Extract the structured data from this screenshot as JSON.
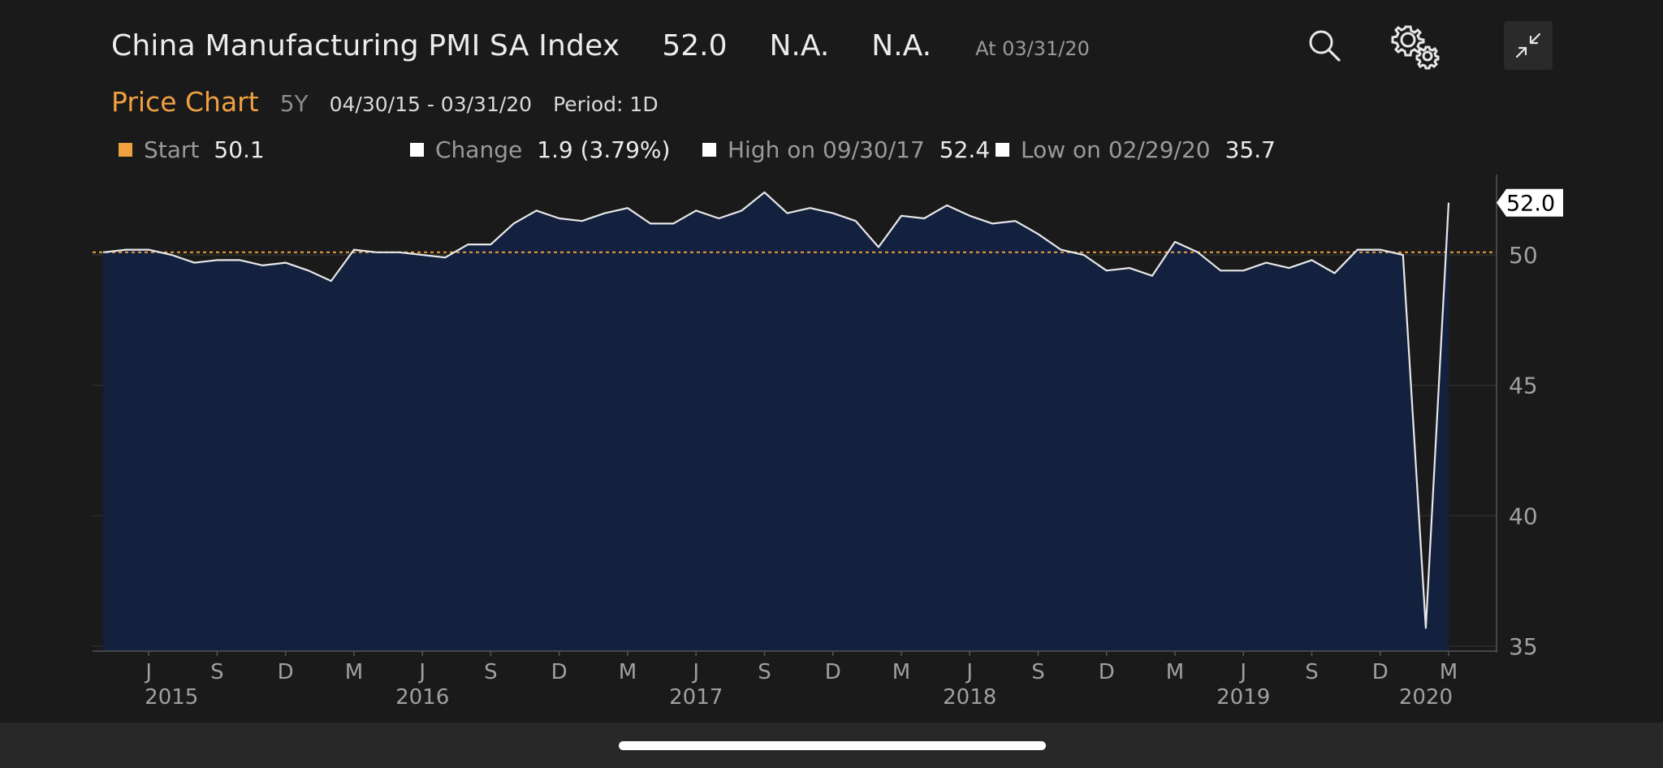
{
  "header": {
    "title": "China Manufacturing PMI SA Index",
    "last_value": "52.0",
    "value_2": "N.A.",
    "value_3": "N.A.",
    "as_of": "At 03/31/20"
  },
  "toolbar": {
    "search_icon": "search-icon",
    "settings_icon": "gear-icon",
    "collapse_icon": "collapse-arrows-icon"
  },
  "subheader": {
    "chart_label": "Price Chart",
    "range": "5Y",
    "date_range": "04/30/15 - 03/31/20",
    "period": "Period: 1D"
  },
  "stats": {
    "start": {
      "label": "Start",
      "value": "50.1",
      "color": "#f0a040"
    },
    "change": {
      "label": "Change",
      "value": "1.9 (3.79%)",
      "color": "#ffffff"
    },
    "high": {
      "label": "High on 09/30/17",
      "value": "52.4",
      "color": "#ffffff"
    },
    "low": {
      "label": "Low on 02/29/20",
      "value": "35.7",
      "color": "#ffffff"
    }
  },
  "colors": {
    "background": "#1a1a1a",
    "area_fill": "#13213f",
    "line": "#e8e8e8",
    "reference_line": "#f0a040",
    "accent": "#f0a040"
  },
  "chart_data": {
    "type": "area",
    "title": "China Manufacturing PMI SA Index",
    "x": [
      "2015-04",
      "2015-05",
      "2015-06",
      "2015-07",
      "2015-08",
      "2015-09",
      "2015-10",
      "2015-11",
      "2015-12",
      "2016-01",
      "2016-02",
      "2016-03",
      "2016-04",
      "2016-05",
      "2016-06",
      "2016-07",
      "2016-08",
      "2016-09",
      "2016-10",
      "2016-11",
      "2016-12",
      "2017-01",
      "2017-02",
      "2017-03",
      "2017-04",
      "2017-05",
      "2017-06",
      "2017-07",
      "2017-08",
      "2017-09",
      "2017-10",
      "2017-11",
      "2017-12",
      "2018-01",
      "2018-02",
      "2018-03",
      "2018-04",
      "2018-05",
      "2018-06",
      "2018-07",
      "2018-08",
      "2018-09",
      "2018-10",
      "2018-11",
      "2018-12",
      "2019-01",
      "2019-02",
      "2019-03",
      "2019-04",
      "2019-05",
      "2019-06",
      "2019-07",
      "2019-08",
      "2019-09",
      "2019-10",
      "2019-11",
      "2019-12",
      "2020-01",
      "2020-02",
      "2020-03"
    ],
    "series": [
      {
        "values": [
          50.1,
          50.2,
          50.2,
          50.0,
          49.7,
          49.8,
          49.8,
          49.6,
          49.7,
          49.4,
          49.0,
          50.2,
          50.1,
          50.1,
          50.0,
          49.9,
          50.4,
          50.4,
          51.2,
          51.7,
          51.4,
          51.3,
          51.6,
          51.8,
          51.2,
          51.2,
          51.7,
          51.4,
          51.7,
          52.4,
          51.6,
          51.8,
          51.6,
          51.3,
          50.3,
          51.5,
          51.4,
          51.9,
          51.5,
          51.2,
          51.3,
          50.8,
          50.2,
          50.0,
          49.4,
          49.5,
          49.2,
          50.5,
          50.1,
          49.4,
          49.4,
          49.7,
          49.5,
          49.8,
          49.3,
          50.2,
          50.2,
          50.0,
          35.7,
          52.0
        ]
      }
    ],
    "reference_line": 50.1,
    "last_value_label": "52.0",
    "ylim": [
      35,
      53
    ],
    "yticks": [
      "35",
      "40",
      "45",
      "50"
    ],
    "x_month_ticks": [
      {
        "label": "J",
        "date": "2015-06"
      },
      {
        "label": "S",
        "date": "2015-09"
      },
      {
        "label": "D",
        "date": "2015-12"
      },
      {
        "label": "M",
        "date": "2016-03"
      },
      {
        "label": "J",
        "date": "2016-06"
      },
      {
        "label": "S",
        "date": "2016-09"
      },
      {
        "label": "D",
        "date": "2016-12"
      },
      {
        "label": "M",
        "date": "2017-03"
      },
      {
        "label": "J",
        "date": "2017-06"
      },
      {
        "label": "S",
        "date": "2017-09"
      },
      {
        "label": "D",
        "date": "2017-12"
      },
      {
        "label": "M",
        "date": "2018-03"
      },
      {
        "label": "J",
        "date": "2018-06"
      },
      {
        "label": "S",
        "date": "2018-09"
      },
      {
        "label": "D",
        "date": "2018-12"
      },
      {
        "label": "M",
        "date": "2019-03"
      },
      {
        "label": "J",
        "date": "2019-06"
      },
      {
        "label": "S",
        "date": "2019-09"
      },
      {
        "label": "D",
        "date": "2019-12"
      },
      {
        "label": "M",
        "date": "2020-03"
      }
    ],
    "x_year_ticks": [
      {
        "label": "2015",
        "date": "2015-07"
      },
      {
        "label": "2016",
        "date": "2016-06"
      },
      {
        "label": "2017",
        "date": "2017-06"
      },
      {
        "label": "2018",
        "date": "2018-06"
      },
      {
        "label": "2019",
        "date": "2019-06"
      },
      {
        "label": "2020",
        "date": "2020-02"
      }
    ],
    "grid": true,
    "y_axis_position": "right"
  }
}
